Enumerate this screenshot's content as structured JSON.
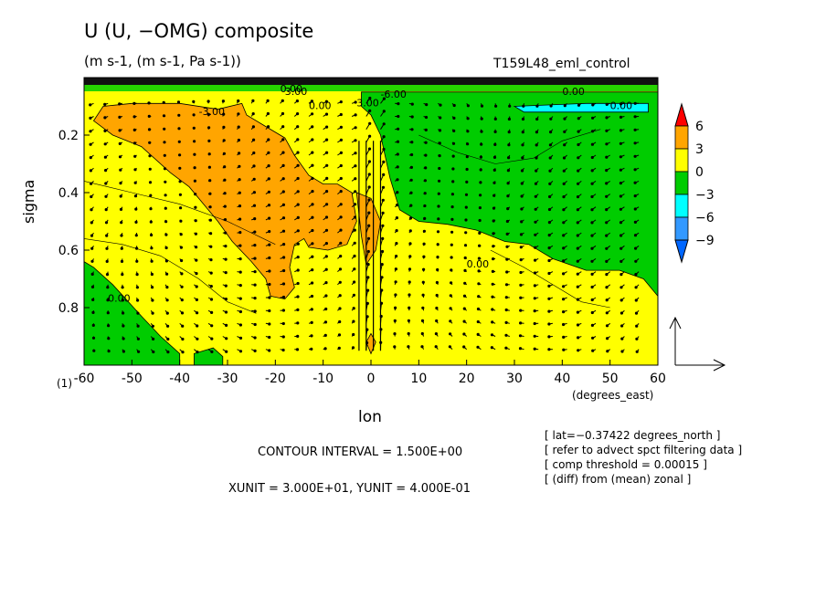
{
  "chart_data": {
    "type": "heatmap",
    "title": "U (U, −OMG) composite",
    "units_line": "(m s-1, (m s-1, Pa s-1))",
    "run_name": "T159L48_eml_control",
    "xlabel": "lon",
    "x_unit": "(degrees_east)",
    "ylabel": "sigma",
    "panel_label": "(1)",
    "xlim": [
      -60,
      60
    ],
    "ylim": [
      1.0,
      0.0
    ],
    "x_ticks": [
      -60,
      -50,
      -40,
      -30,
      -20,
      -10,
      0,
      10,
      20,
      30,
      40,
      50,
      60
    ],
    "x_tick_labels": [
      "-60",
      "-50",
      "-40",
      "-30",
      "-20",
      "-10",
      "0",
      "10",
      "20",
      "30",
      "40",
      "50",
      "60"
    ],
    "y_ticks": [
      0.2,
      0.4,
      0.6,
      0.8
    ],
    "y_tick_labels": [
      "0.2",
      "0.4",
      "0.6",
      "0.8"
    ],
    "colorbar": {
      "levels": [
        6,
        3,
        0,
        -3,
        -6,
        -9
      ],
      "labels": [
        "6",
        "3",
        "0",
        "−3",
        "−6",
        "−9"
      ],
      "colors": [
        "#ffa500",
        "#ffff00",
        "#00cc00",
        "#00ffff",
        "#3399ff"
      ],
      "over_color": "#ff0000",
      "under_color": "#0066ff"
    },
    "contour_labels": [
      "0.00",
      "3.00",
      "-3.00",
      "-6.00",
      "0.00",
      "3.00",
      "0.00",
      "0.00",
      "0.00",
      "0.00"
    ],
    "contour_interval_text": "CONTOUR INTERVAL = 1.500E+00",
    "vector_scale_text": "XUNIT = 3.000E+01, YUNIT = 4.000E-01",
    "notes": [
      "[ lat=−0.37422 degrees_north ]",
      "[ refer to advect spct filtering data ]",
      "[ comp threshold = 0.00015 ]",
      "[ (diff) from (mean) zonal ]"
    ]
  }
}
